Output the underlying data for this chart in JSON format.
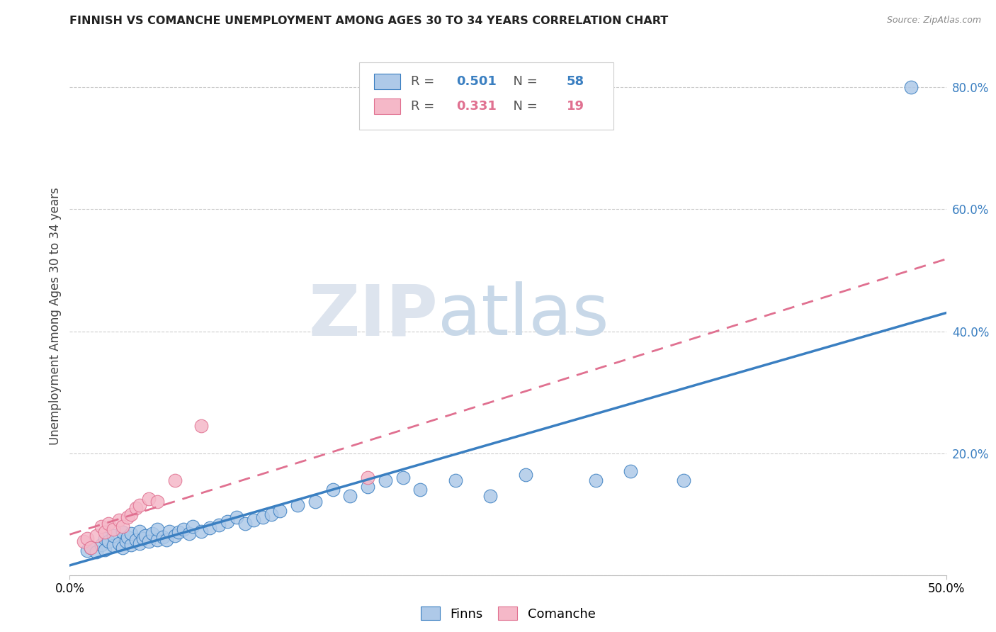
{
  "title": "FINNISH VS COMANCHE UNEMPLOYMENT AMONG AGES 30 TO 34 YEARS CORRELATION CHART",
  "source": "Source: ZipAtlas.com",
  "ylabel": "Unemployment Among Ages 30 to 34 years",
  "xlim": [
    0.0,
    0.5
  ],
  "ylim": [
    0.0,
    0.85
  ],
  "yticks": [
    0.0,
    0.2,
    0.4,
    0.6,
    0.8
  ],
  "ytick_labels": [
    "",
    "20.0%",
    "40.0%",
    "60.0%",
    "80.0%"
  ],
  "xtick_labels": [
    "0.0%",
    "50.0%"
  ],
  "legend_finn_R": "0.501",
  "legend_finn_N": "58",
  "legend_com_R": "0.331",
  "legend_com_N": "19",
  "watermark_zip": "ZIP",
  "watermark_atlas": "atlas",
  "finn_color": "#aec9e8",
  "finn_line_color": "#3a7fc1",
  "comanche_color": "#f5b8c8",
  "comanche_line_color": "#e07090",
  "finns_x": [
    0.01,
    0.012,
    0.015,
    0.018,
    0.02,
    0.02,
    0.022,
    0.025,
    0.025,
    0.028,
    0.03,
    0.03,
    0.032,
    0.033,
    0.035,
    0.035,
    0.038,
    0.04,
    0.04,
    0.042,
    0.043,
    0.045,
    0.047,
    0.05,
    0.05,
    0.053,
    0.055,
    0.057,
    0.06,
    0.062,
    0.065,
    0.068,
    0.07,
    0.075,
    0.08,
    0.085,
    0.09,
    0.095,
    0.1,
    0.105,
    0.11,
    0.115,
    0.12,
    0.13,
    0.14,
    0.15,
    0.16,
    0.17,
    0.18,
    0.19,
    0.2,
    0.22,
    0.24,
    0.26,
    0.3,
    0.32,
    0.35,
    0.48
  ],
  "finns_y": [
    0.04,
    0.045,
    0.038,
    0.05,
    0.042,
    0.06,
    0.055,
    0.048,
    0.065,
    0.052,
    0.045,
    0.07,
    0.055,
    0.062,
    0.05,
    0.068,
    0.058,
    0.052,
    0.072,
    0.06,
    0.065,
    0.055,
    0.068,
    0.058,
    0.075,
    0.062,
    0.058,
    0.072,
    0.065,
    0.07,
    0.075,
    0.068,
    0.08,
    0.072,
    0.078,
    0.082,
    0.088,
    0.095,
    0.085,
    0.09,
    0.095,
    0.1,
    0.105,
    0.115,
    0.12,
    0.14,
    0.13,
    0.145,
    0.155,
    0.16,
    0.14,
    0.155,
    0.13,
    0.165,
    0.155,
    0.17,
    0.155,
    0.8
  ],
  "comanche_x": [
    0.008,
    0.01,
    0.012,
    0.015,
    0.018,
    0.02,
    0.022,
    0.025,
    0.028,
    0.03,
    0.033,
    0.035,
    0.038,
    0.04,
    0.045,
    0.05,
    0.06,
    0.075,
    0.17
  ],
  "comanche_y": [
    0.055,
    0.06,
    0.045,
    0.065,
    0.08,
    0.07,
    0.085,
    0.075,
    0.09,
    0.08,
    0.095,
    0.1,
    0.11,
    0.115,
    0.125,
    0.12,
    0.155,
    0.245,
    0.16
  ]
}
